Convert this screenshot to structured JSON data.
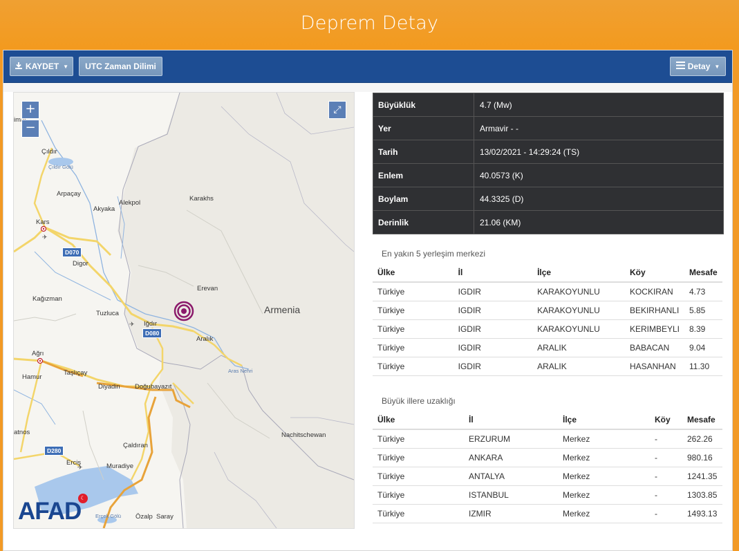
{
  "header": {
    "title": "Deprem Detay"
  },
  "toolbar": {
    "save_label": "KAYDET",
    "utc_label": "UTC Zaman Dilimi",
    "detail_label": "Detay"
  },
  "map": {
    "zoom_in": "+",
    "zoom_out": "−",
    "logo_text": "AFAD",
    "labels": {
      "cildir": "Çıldır",
      "cildir_golu": "Çıldır Gölü",
      "arpacay": "Arpaçay",
      "alekpol": "Alekpol",
      "akyaka": "Akyaka",
      "karakhs": "Karakhs",
      "kars": "Kars",
      "digor": "Digor",
      "erevan": "Erevan",
      "kagizman": "Kağızman",
      "armenia": "Armenia",
      "tuzluca": "Tuzluca",
      "igdir": "Iğdır",
      "aralik": "Aralık",
      "aras_nehri": "Aras Nehri",
      "agri": "Ağrı",
      "hamur": "Hamur",
      "taslicay": "Taşlıçay",
      "diyadin": "Diyadin",
      "dogubayazit": "Doğubayazıt",
      "nachitschewan": "Nachitschewan",
      "caldiran": "Çaldıran",
      "atnos": "atnos",
      "ercis": "Erciş",
      "muradiye": "Muradiye",
      "ozalp": "Özalp",
      "saray": "Saray",
      "ercek_golu": "Erçek Gölü",
      "imal": "imal"
    },
    "roads": {
      "d070": "D070",
      "d080": "D080",
      "d280": "D280"
    }
  },
  "info": [
    {
      "key": "Büyüklük",
      "value": "4.7 (Mw)"
    },
    {
      "key": "Yer",
      "value": "Armavir - -"
    },
    {
      "key": "Tarih",
      "value": "13/02/2021 - 14:29:24 (TS)"
    },
    {
      "key": "Enlem",
      "value": "40.0573 (K)"
    },
    {
      "key": "Boylam",
      "value": "44.3325 (D)"
    },
    {
      "key": "Derinlik",
      "value": "21.06 (KM)"
    }
  ],
  "nearest": {
    "caption": "En yakın 5 yerleşim merkezi",
    "headers": [
      "Ülke",
      "İl",
      "İlçe",
      "Köy",
      "Mesafe"
    ],
    "rows": [
      [
        "Türkiye",
        "IGDIR",
        "KARAKOYUNLU",
        "KOCKIRAN",
        "4.73"
      ],
      [
        "Türkiye",
        "IGDIR",
        "KARAKOYUNLU",
        "BEKIRHANLI",
        "5.85"
      ],
      [
        "Türkiye",
        "IGDIR",
        "KARAKOYUNLU",
        "KERIMBEYLI",
        "8.39"
      ],
      [
        "Türkiye",
        "IGDIR",
        "ARALIK",
        "BABACAN",
        "9.04"
      ],
      [
        "Türkiye",
        "IGDIR",
        "ARALIK",
        "HASANHAN",
        "11.30"
      ]
    ]
  },
  "cities": {
    "caption": "Büyük illere uzaklığı",
    "headers": [
      "Ülke",
      "İl",
      "İlçe",
      "Köy",
      "Mesafe"
    ],
    "rows": [
      [
        "Türkiye",
        "ERZURUM",
        "Merkez",
        "-",
        "262.26"
      ],
      [
        "Türkiye",
        "ANKARA",
        "Merkez",
        "-",
        "980.16"
      ],
      [
        "Türkiye",
        "ANTALYA",
        "Merkez",
        "-",
        "1241.35"
      ],
      [
        "Türkiye",
        "ISTANBUL",
        "Merkez",
        "-",
        "1303.85"
      ],
      [
        "Türkiye",
        "IZMIR",
        "Merkez",
        "-",
        "1493.13"
      ]
    ]
  },
  "colors": {
    "header_bg": "#f29a26",
    "toolbar_bg": "#1d4d93",
    "info_bg": "#2f3033",
    "epicenter": "#8b1a6b"
  }
}
